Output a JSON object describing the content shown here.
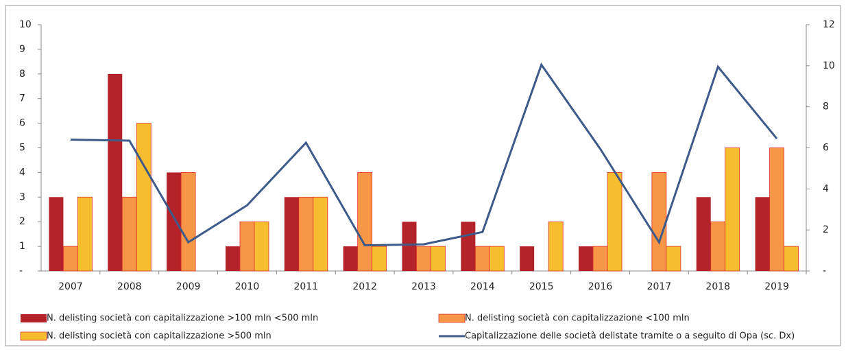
{
  "chart_data": {
    "type": "bar",
    "categories": [
      "2007",
      "2008",
      "2009",
      "2010",
      "2011",
      "2012",
      "2013",
      "2014",
      "2015",
      "2016",
      "2017",
      "2018",
      "2019"
    ],
    "series": [
      {
        "name": "N. delisting società con capitalizzazione >100 mln <500 mln",
        "color": "#b5232a",
        "values": [
          3,
          8,
          4,
          1,
          3,
          1,
          2,
          2,
          1,
          1,
          0,
          3,
          3
        ]
      },
      {
        "name": "N. delisting società con capitalizzazione <100 mln",
        "color": "#f79646",
        "values": [
          1,
          3,
          4,
          2,
          3,
          4,
          1,
          1,
          0,
          1,
          4,
          2,
          5
        ]
      },
      {
        "name": "N. delisting società con capitalizzazione >500 mln",
        "color": "#f6bd2f",
        "values": [
          3,
          6,
          0,
          2,
          3,
          1,
          1,
          1,
          2,
          4,
          1,
          5,
          1
        ]
      },
      {
        "name": "Capitalizzazione delle società delistate tramite o a seguito di Opa (sc. Dx)",
        "color": "#3d5a8a",
        "type": "line",
        "axis": "y2",
        "values": [
          6.4,
          6.35,
          1.4,
          3.2,
          6.25,
          1.25,
          1.3,
          1.9,
          10.05,
          5.95,
          1.4,
          9.95,
          6.45
        ]
      }
    ],
    "ylim": [
      0,
      10
    ],
    "yticks": [
      {
        "value": 0,
        "label": "-"
      },
      1,
      2,
      3,
      4,
      5,
      6,
      7,
      8,
      9,
      10
    ],
    "y2lim": [
      0,
      12
    ],
    "y2ticks": [
      {
        "value": 0,
        "label": "-"
      },
      2,
      4,
      6,
      8,
      10,
      12
    ]
  }
}
